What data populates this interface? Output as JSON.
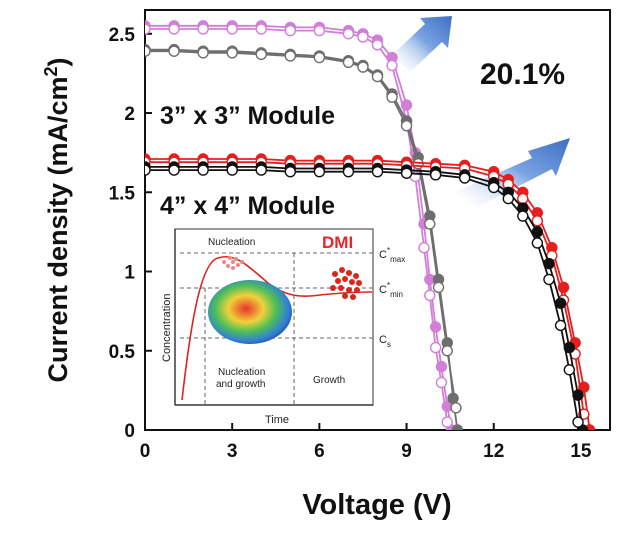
{
  "chart_data": {
    "type": "line",
    "xlabel": "Voltage (V)",
    "ylabel_main": "Current density (mA/cm",
    "ylabel_sup": "2",
    "ylabel_close": ")",
    "xlim": [
      0,
      16
    ],
    "ylim": [
      0,
      2.65
    ],
    "x_ticks": [
      "0",
      "3",
      "6",
      "9",
      "12",
      "15"
    ],
    "y_ticks": [
      "0",
      "0.5",
      "1",
      "1.5",
      "2",
      "2.5"
    ],
    "annotations": {
      "efficiency": "20.1%",
      "module_3": "3” x 3” Module",
      "module_4": "4” x 4” Module"
    },
    "series": [
      {
        "color": "#d27fd8",
        "marker_fill": "#d27fd8",
        "x": [
          0,
          1,
          2,
          3,
          4,
          5,
          6,
          7,
          7.5,
          8,
          8.5,
          9,
          9.3,
          9.6,
          9.8,
          10.0,
          10.2,
          10.4,
          10.55
        ],
        "y": [
          2.55,
          2.55,
          2.55,
          2.55,
          2.55,
          2.54,
          2.54,
          2.52,
          2.5,
          2.46,
          2.35,
          2.05,
          1.75,
          1.3,
          0.95,
          0.65,
          0.4,
          0.15,
          0.0
        ]
      },
      {
        "color": "#d27fd8",
        "marker_fill": "#ffffff",
        "x": [
          0,
          1,
          2,
          3,
          4,
          5,
          6,
          7,
          7.5,
          8,
          8.5,
          9,
          9.3,
          9.6,
          9.8,
          10.0,
          10.2,
          10.4
        ],
        "y": [
          2.53,
          2.53,
          2.53,
          2.53,
          2.53,
          2.52,
          2.52,
          2.5,
          2.48,
          2.43,
          2.3,
          1.95,
          1.6,
          1.15,
          0.85,
          0.52,
          0.3,
          0.05
        ]
      },
      {
        "color": "#6e6e6e",
        "marker_fill": "#6e6e6e",
        "x": [
          0,
          1,
          2,
          3,
          4,
          5,
          6,
          7,
          7.5,
          8,
          8.5,
          9,
          9.4,
          9.8,
          10.1,
          10.4,
          10.6,
          10.75
        ],
        "y": [
          2.4,
          2.4,
          2.39,
          2.39,
          2.38,
          2.37,
          2.36,
          2.33,
          2.3,
          2.24,
          2.12,
          1.95,
          1.72,
          1.35,
          0.95,
          0.55,
          0.2,
          0.0
        ]
      },
      {
        "color": "#6e6e6e",
        "marker_fill": "#ffffff",
        "x": [
          0,
          1,
          2,
          3,
          4,
          5,
          6,
          7,
          7.5,
          8,
          8.5,
          9,
          9.4,
          9.8,
          10.1,
          10.4,
          10.7
        ],
        "y": [
          2.39,
          2.39,
          2.38,
          2.38,
          2.37,
          2.36,
          2.35,
          2.32,
          2.29,
          2.23,
          2.1,
          1.92,
          1.68,
          1.3,
          0.9,
          0.5,
          0.14
        ]
      },
      {
        "color": "#e61e1e",
        "marker_fill": "#e61e1e",
        "x": [
          0,
          1,
          2,
          3,
          4,
          5,
          6,
          7,
          8,
          9,
          10,
          11,
          12,
          12.5,
          13,
          13.5,
          14,
          14.4,
          14.8,
          15.1,
          15.3
        ],
        "y": [
          1.71,
          1.71,
          1.71,
          1.71,
          1.71,
          1.7,
          1.7,
          1.7,
          1.7,
          1.69,
          1.68,
          1.67,
          1.63,
          1.58,
          1.5,
          1.37,
          1.15,
          0.9,
          0.55,
          0.27,
          0.0
        ]
      },
      {
        "color": "#e61e1e",
        "marker_fill": "#ffffff",
        "x": [
          0,
          1,
          2,
          3,
          4,
          5,
          6,
          7,
          8,
          9,
          10,
          11,
          12,
          12.5,
          13,
          13.5,
          14,
          14.4,
          14.8,
          15.1
        ],
        "y": [
          1.69,
          1.69,
          1.69,
          1.69,
          1.69,
          1.68,
          1.68,
          1.68,
          1.68,
          1.67,
          1.66,
          1.65,
          1.6,
          1.55,
          1.46,
          1.32,
          1.1,
          0.82,
          0.48,
          0.1
        ]
      },
      {
        "color": "#111111",
        "marker_fill": "#111111",
        "x": [
          0,
          1,
          2,
          3,
          4,
          5,
          6,
          7,
          8,
          9,
          10,
          11,
          12,
          12.5,
          13,
          13.5,
          13.9,
          14.3,
          14.6,
          14.9,
          15.05
        ],
        "y": [
          1.66,
          1.66,
          1.66,
          1.66,
          1.66,
          1.65,
          1.65,
          1.65,
          1.65,
          1.64,
          1.63,
          1.61,
          1.56,
          1.5,
          1.4,
          1.25,
          1.05,
          0.8,
          0.52,
          0.22,
          0.0
        ]
      },
      {
        "color": "#111111",
        "marker_fill": "#ffffff",
        "x": [
          0,
          1,
          2,
          3,
          4,
          5,
          6,
          7,
          8,
          9,
          10,
          11,
          12,
          12.5,
          13,
          13.5,
          13.9,
          14.3,
          14.6,
          14.9
        ],
        "y": [
          1.64,
          1.64,
          1.64,
          1.64,
          1.64,
          1.63,
          1.63,
          1.63,
          1.63,
          1.62,
          1.61,
          1.59,
          1.53,
          1.46,
          1.35,
          1.18,
          0.95,
          0.66,
          0.38,
          0.05
        ]
      }
    ],
    "inset": {
      "title": "DMI",
      "title_color": "#e8252a",
      "ylabel": "Concentration",
      "xlabel": "Time",
      "region_nucleation": "Nucleation",
      "region_nucleation_growth_1": "Nucleation",
      "region_nucleation_growth_2": "and growth",
      "region_growth": "Growth",
      "level_cmax_base": "C",
      "level_cmax_sup": "*",
      "level_cmax_sub": "max",
      "level_cmin_base": "C",
      "level_cmin_sup": "*",
      "level_cmin_sub": "min",
      "level_cs_base": "C",
      "level_cs_sub": "s"
    },
    "colors": {
      "arrow": "#4a7fd0",
      "inset_curve": "#d9261c"
    }
  }
}
